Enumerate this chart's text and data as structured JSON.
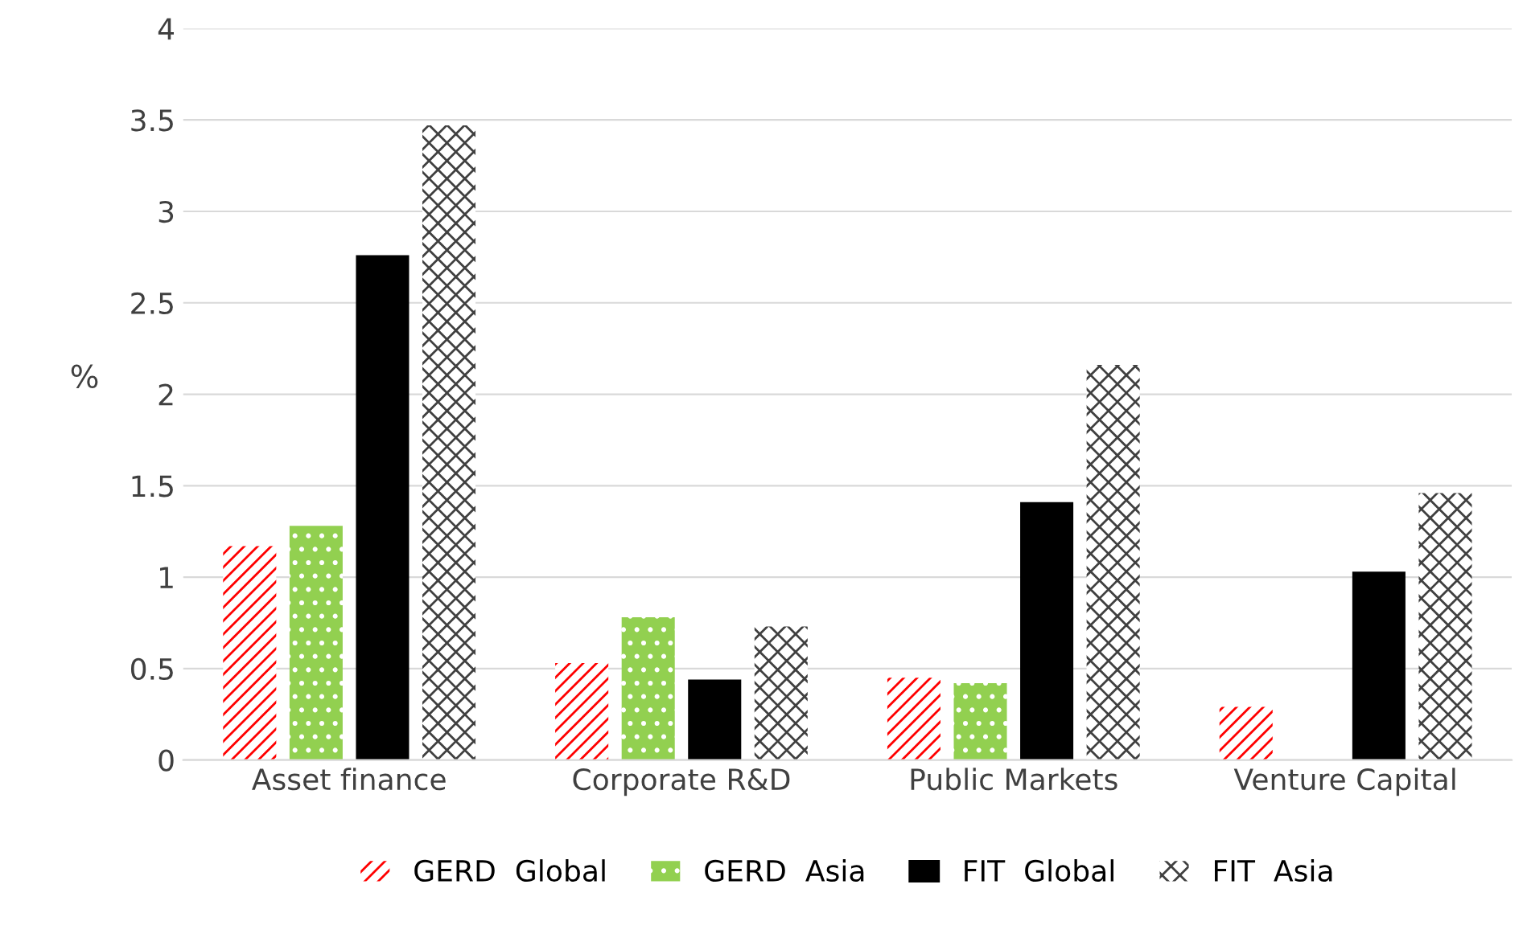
{
  "chart_data": {
    "type": "bar",
    "ylabel": "%",
    "categories": [
      "Asset finance",
      "Corporate R&D",
      "Public Markets",
      "Venture Capital"
    ],
    "series": [
      {
        "name": "GERD  Global",
        "color": "#ff0000",
        "values": [
          1.17,
          0.53,
          0.45,
          0.29
        ]
      },
      {
        "name": "GERD  Asia",
        "color": "#92d050",
        "values": [
          1.28,
          0.78,
          0.42,
          null
        ]
      },
      {
        "name": "FIT  Global",
        "color": "#000000",
        "values": [
          2.76,
          0.44,
          1.41,
          1.03
        ]
      },
      {
        "name": "FIT  Asia",
        "color": "#404040",
        "values": [
          3.47,
          0.73,
          2.16,
          1.46
        ]
      }
    ],
    "ylim": [
      0,
      4
    ],
    "yticks": [
      0,
      0.5,
      1,
      1.5,
      2,
      2.5,
      3,
      3.5,
      4
    ],
    "grid": "y",
    "legend": "bottom"
  }
}
